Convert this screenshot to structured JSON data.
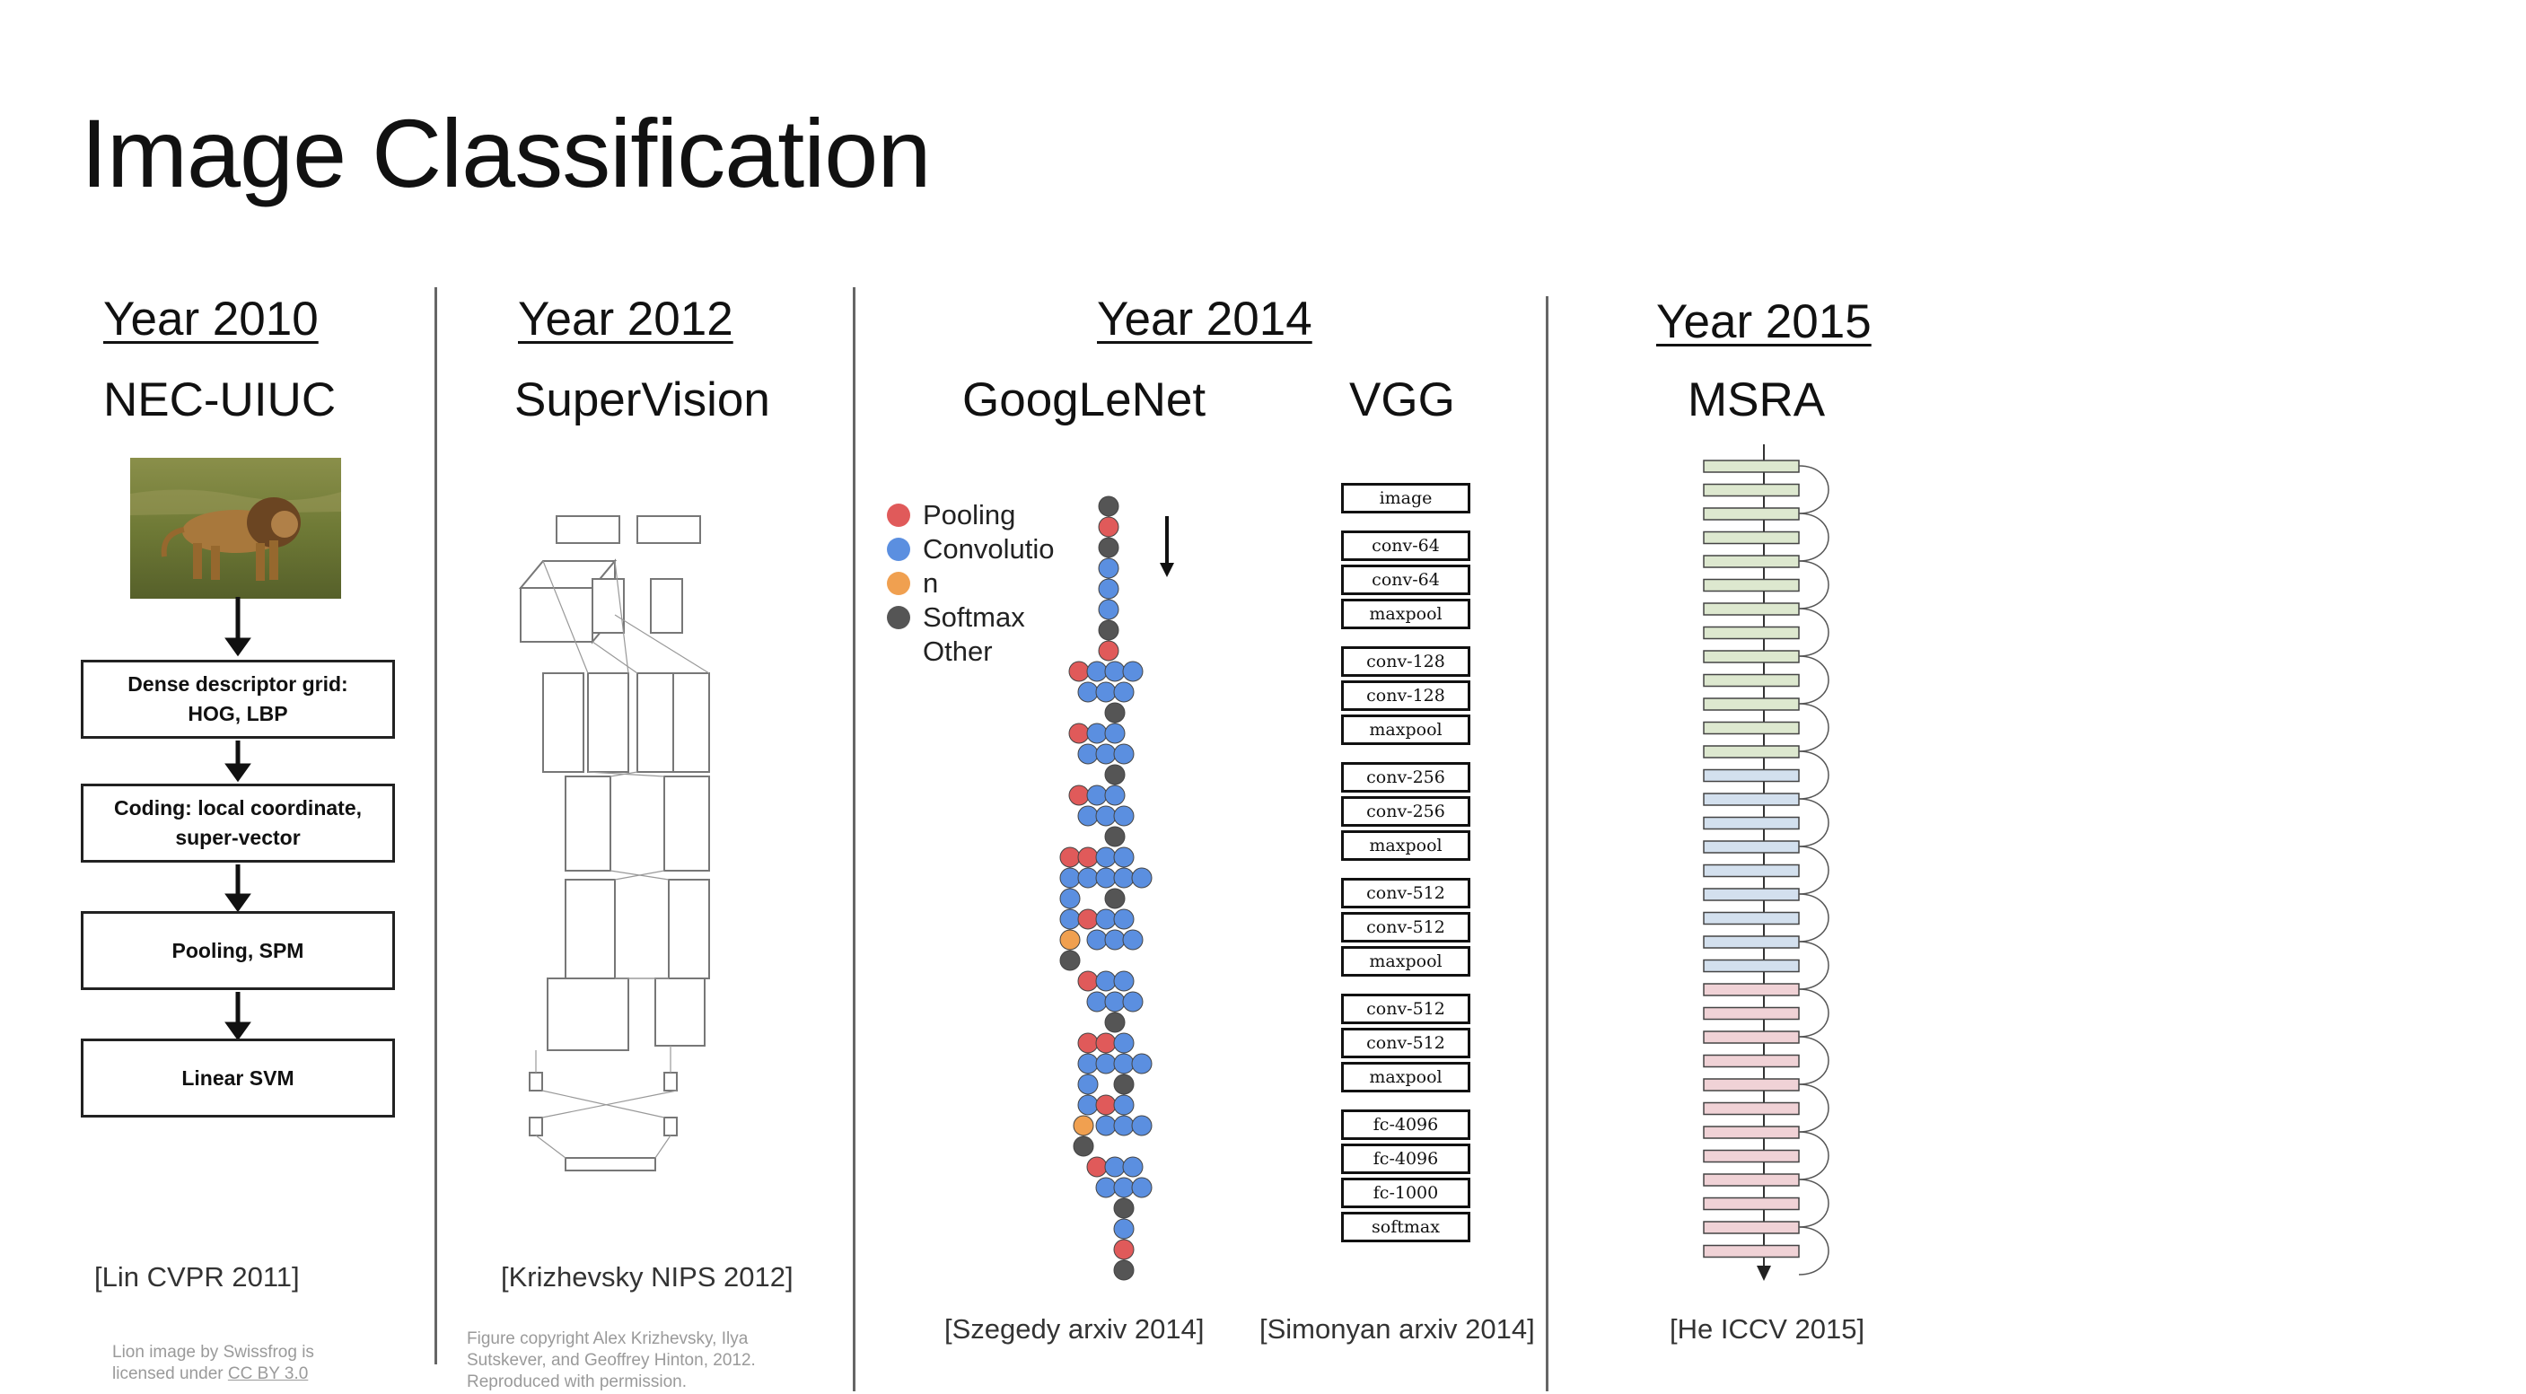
{
  "title": "Image Classification",
  "columns": {
    "y2010": {
      "year": "Year 2010",
      "model": "NEC-UIUC",
      "pipeline": [
        "Dense descriptor grid:\nHOG, LBP",
        "Coding: local coordinate,\nsuper-vector",
        "Pooling, SPM",
        "Linear SVM"
      ],
      "citation": "[Lin CVPR 2011]",
      "credit_prefix": "Lion image by Swissfrog is licensed under ",
      "credit_link": "CC BY 3.0"
    },
    "y2012": {
      "year": "Year 2012",
      "model": "SuperVision",
      "citation": "[Krizhevsky NIPS 2012]",
      "credit": "Figure copyright Alex Krizhevsky, Ilya Sutskever, and Geoffrey Hinton, 2012. Reproduced with permission."
    },
    "y2014": {
      "year": "Year 2014",
      "model_a": "GoogLeNet",
      "model_b": "VGG",
      "legend": [
        {
          "label": "Pooling",
          "color": "#e05a5a"
        },
        {
          "label": "Convolutio",
          "color": "#5b8fe0"
        },
        {
          "label": "n",
          "color": "#f0a050"
        },
        {
          "label": "Softmax",
          "color": "#555555"
        },
        {
          "label": "Other",
          "color": ""
        }
      ],
      "vgg_layers": [
        "image",
        "conv-64",
        "conv-64",
        "maxpool",
        "conv-128",
        "conv-128",
        "maxpool",
        "conv-256",
        "conv-256",
        "maxpool",
        "conv-512",
        "conv-512",
        "maxpool",
        "conv-512",
        "conv-512",
        "maxpool",
        "fc-4096",
        "fc-4096",
        "fc-1000",
        "softmax"
      ],
      "citation_a": "[Szegedy arxiv 2014]",
      "citation_b": "[Simonyan arxiv 2014]"
    },
    "y2015": {
      "year": "Year 2015",
      "model": "MSRA",
      "citation": "[He ICCV 2015]"
    }
  },
  "colors": {
    "pooling": "#e05a5a",
    "convolution": "#5b8fe0",
    "concat": "#f0a050",
    "softmax": "#555555",
    "resnet_green": "#dde8cf",
    "resnet_blue": "#d3e0ee",
    "resnet_pink": "#f0d2d6"
  }
}
